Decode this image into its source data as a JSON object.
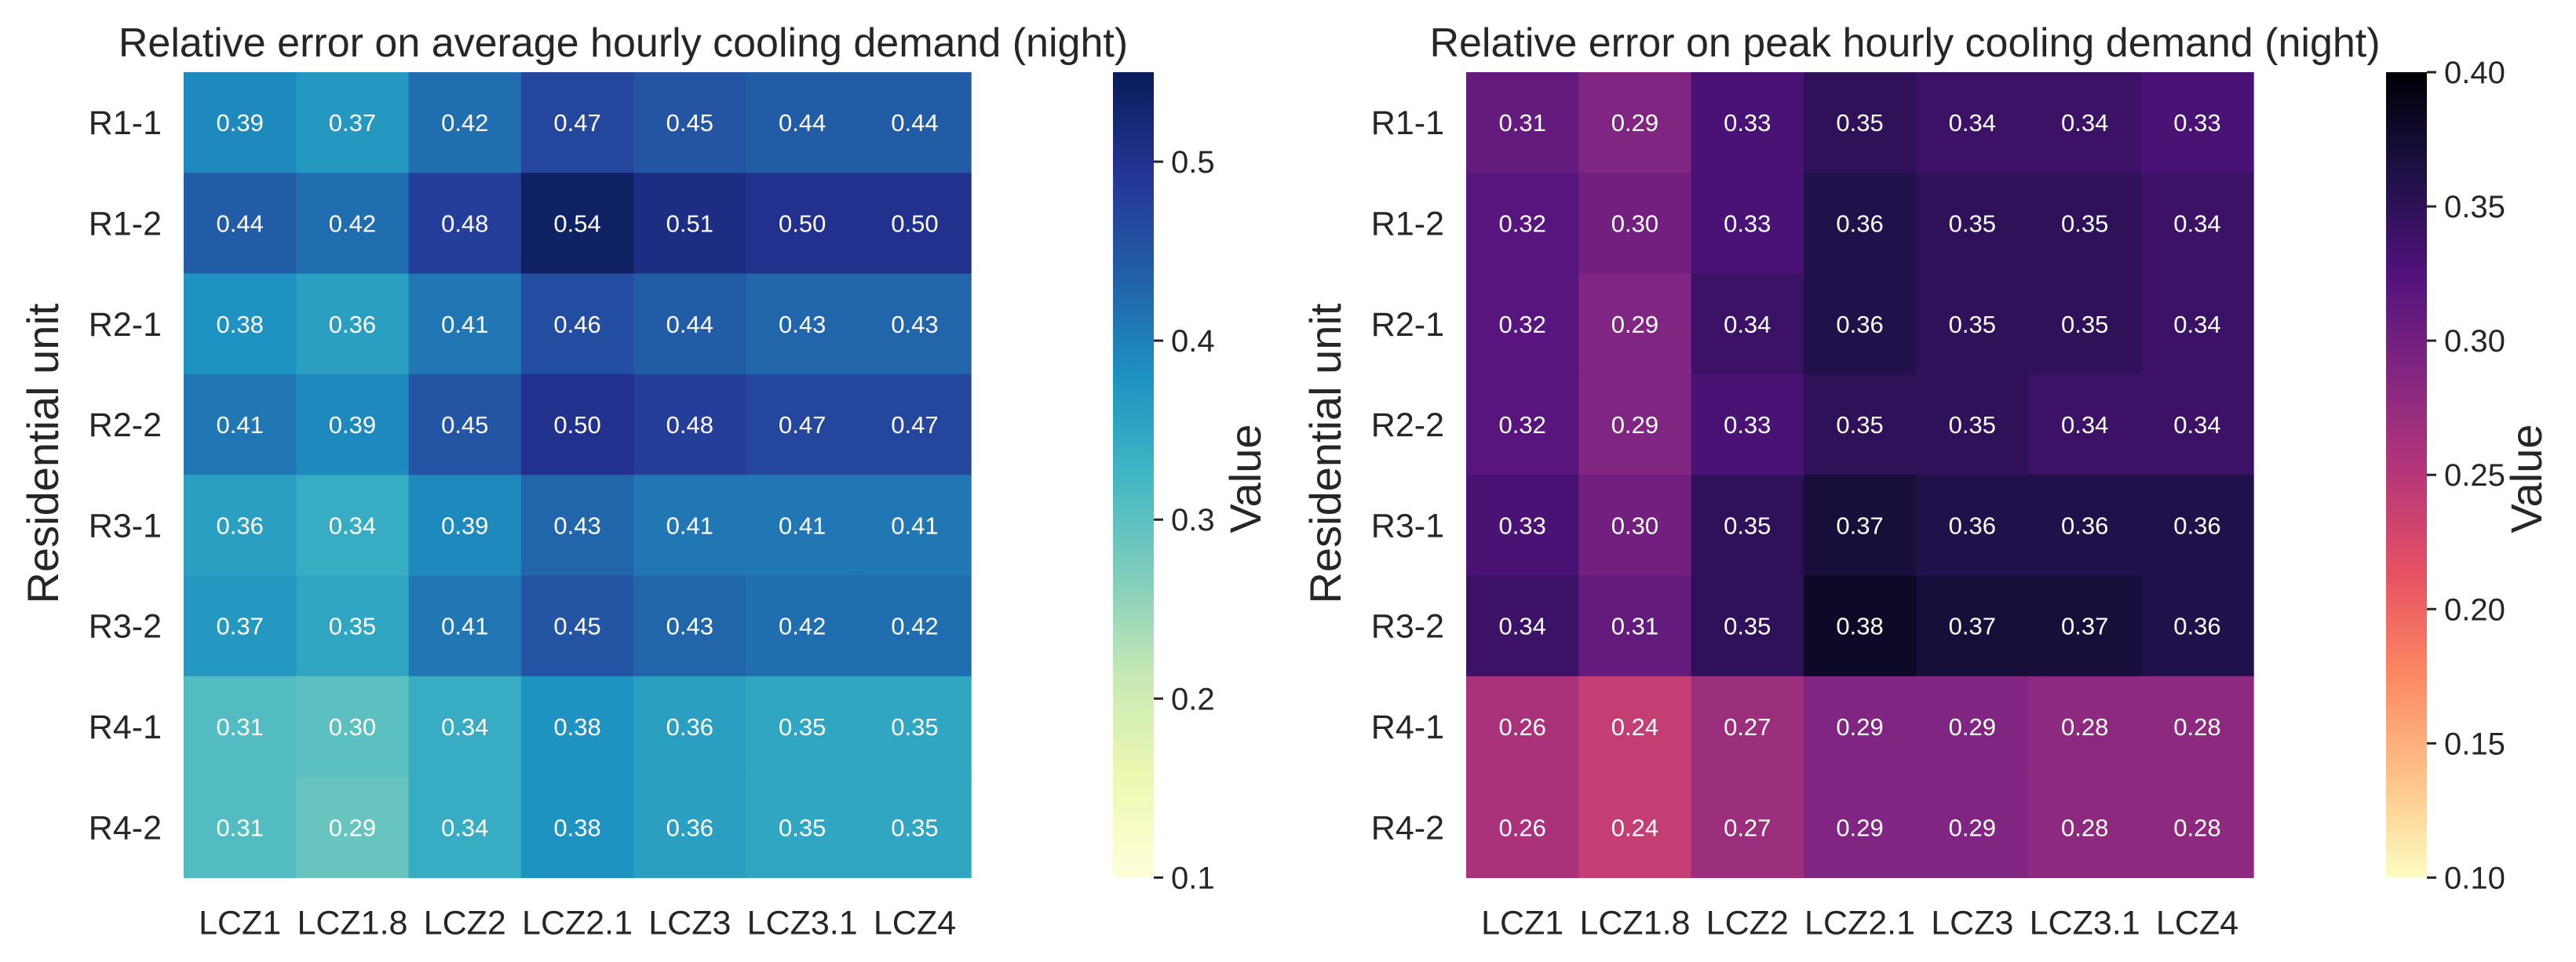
{
  "chart_data": [
    {
      "type": "heatmap",
      "title": "Relative error on average hourly cooling demand (night)",
      "xlabel": "",
      "ylabel": "Residential unit",
      "colorbar_label": "Value",
      "colormap": "YlGnBu",
      "vmin": 0.1,
      "vmax": 0.55,
      "colorbar_ticks": [
        "0.1",
        "0.2",
        "0.3",
        "0.4",
        "0.5"
      ],
      "x_categories": [
        "LCZ1",
        "LCZ1.8",
        "LCZ2",
        "LCZ2.1",
        "LCZ3",
        "LCZ3.1",
        "LCZ4"
      ],
      "y_categories": [
        "R1-1",
        "R1-2",
        "R2-1",
        "R2-2",
        "R3-1",
        "R3-2",
        "R4-1",
        "R4-2"
      ],
      "values": [
        [
          0.39,
          0.37,
          0.42,
          0.47,
          0.45,
          0.44,
          0.44
        ],
        [
          0.44,
          0.42,
          0.48,
          0.54,
          0.51,
          0.5,
          0.5
        ],
        [
          0.38,
          0.36,
          0.41,
          0.46,
          0.44,
          0.43,
          0.43
        ],
        [
          0.41,
          0.39,
          0.45,
          0.5,
          0.48,
          0.47,
          0.47
        ],
        [
          0.36,
          0.34,
          0.39,
          0.43,
          0.41,
          0.41,
          0.41
        ],
        [
          0.37,
          0.35,
          0.41,
          0.45,
          0.43,
          0.42,
          0.42
        ],
        [
          0.31,
          0.3,
          0.34,
          0.38,
          0.36,
          0.35,
          0.35
        ],
        [
          0.31,
          0.29,
          0.34,
          0.38,
          0.36,
          0.35,
          0.35
        ]
      ]
    },
    {
      "type": "heatmap",
      "title": "Relative error on peak hourly cooling demand (night)",
      "xlabel": "",
      "ylabel": "Residential unit",
      "colorbar_label": "Value",
      "colormap": "magma_r",
      "vmin": 0.1,
      "vmax": 0.4,
      "colorbar_ticks": [
        "0.10",
        "0.15",
        "0.20",
        "0.25",
        "0.30",
        "0.35",
        "0.40"
      ],
      "x_categories": [
        "LCZ1",
        "LCZ1.8",
        "LCZ2",
        "LCZ2.1",
        "LCZ3",
        "LCZ3.1",
        "LCZ4"
      ],
      "y_categories": [
        "R1-1",
        "R1-2",
        "R2-1",
        "R2-2",
        "R3-1",
        "R3-2",
        "R4-1",
        "R4-2"
      ],
      "values": [
        [
          0.31,
          0.29,
          0.33,
          0.35,
          0.34,
          0.34,
          0.33
        ],
        [
          0.32,
          0.3,
          0.33,
          0.36,
          0.35,
          0.35,
          0.34
        ],
        [
          0.32,
          0.29,
          0.34,
          0.36,
          0.35,
          0.35,
          0.34
        ],
        [
          0.32,
          0.29,
          0.33,
          0.35,
          0.35,
          0.34,
          0.34
        ],
        [
          0.33,
          0.3,
          0.35,
          0.37,
          0.36,
          0.36,
          0.36
        ],
        [
          0.34,
          0.31,
          0.35,
          0.38,
          0.37,
          0.37,
          0.36
        ],
        [
          0.26,
          0.24,
          0.27,
          0.29,
          0.29,
          0.28,
          0.28
        ],
        [
          0.26,
          0.24,
          0.27,
          0.29,
          0.29,
          0.28,
          0.28
        ]
      ]
    }
  ]
}
